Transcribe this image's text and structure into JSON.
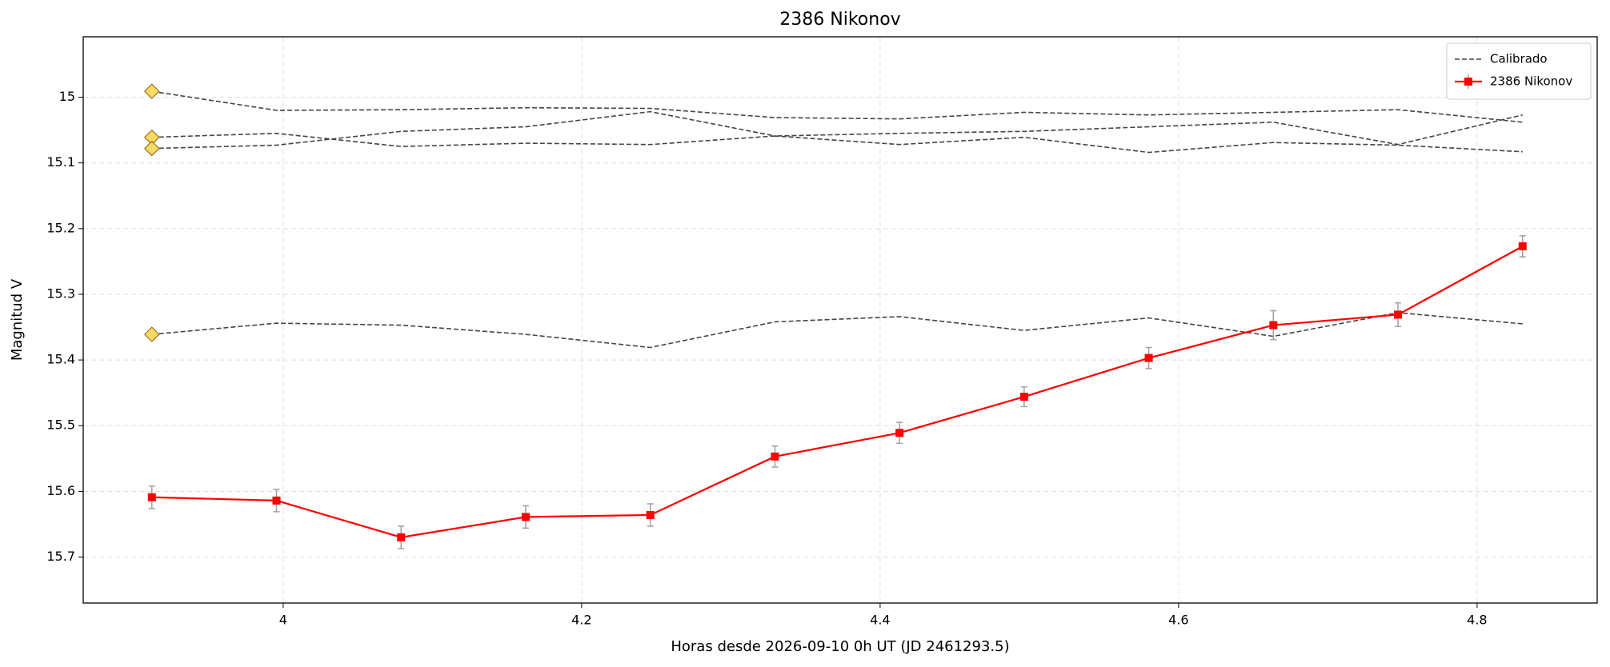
{
  "chart_data": {
    "type": "line",
    "title": "2386 Nikonov",
    "xlabel": "Horas desde 2026-09-10 0h UT (JD 2461293.5)",
    "ylabel": "Magnitud V",
    "x": [
      3.912,
      3.9955,
      4.079,
      4.1625,
      4.246,
      4.3295,
      4.413,
      4.4965,
      4.58,
      4.6635,
      4.747,
      4.8305
    ],
    "series": [
      {
        "name": "Calibrado",
        "color": "#444444",
        "values": [
          14.991,
          15.02,
          15.019,
          15.016,
          15.017,
          15.031,
          15.033,
          15.023,
          15.027,
          15.023,
          15.019,
          15.038
        ]
      },
      {
        "name": "Calibrado",
        "color": "#444444",
        "values": [
          15.061,
          15.055,
          15.075,
          15.07,
          15.072,
          15.059,
          15.055,
          15.052,
          15.045,
          15.038,
          15.072,
          15.027
        ]
      },
      {
        "name": "Calibrado",
        "color": "#444444",
        "values": [
          15.078,
          15.073,
          15.052,
          15.045,
          15.022,
          15.059,
          15.072,
          15.061,
          15.084,
          15.069,
          15.073,
          15.083
        ]
      },
      {
        "name": "Calibrado",
        "color": "#444444",
        "values": [
          15.361,
          15.344,
          15.347,
          15.361,
          15.381,
          15.342,
          15.334,
          15.355,
          15.336,
          15.364,
          15.328,
          15.345
        ]
      },
      {
        "name": "2386 Nikonov",
        "color": "#ff0000",
        "values": [
          15.609,
          15.614,
          15.67,
          15.639,
          15.636,
          15.547,
          15.511,
          15.456,
          15.397,
          15.347,
          15.331,
          15.227
        ],
        "errors": [
          0.017,
          0.017,
          0.017,
          0.017,
          0.017,
          0.016,
          0.016,
          0.015,
          0.016,
          0.022,
          0.018,
          0.016
        ]
      }
    ],
    "xlim": [
      3.866,
      4.8805
    ],
    "xticks": [
      4.0,
      4.2,
      4.4,
      4.6,
      4.8
    ],
    "ylim": [
      15.77,
      14.908
    ],
    "yticks": [
      15.0,
      15.1,
      15.2,
      15.3,
      15.4,
      15.5,
      15.6,
      15.7
    ],
    "grid": true,
    "legend": "upper right"
  }
}
